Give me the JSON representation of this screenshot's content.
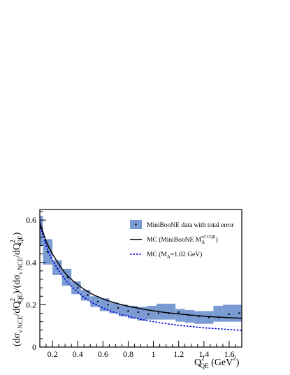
{
  "chart_data": {
    "type": "line",
    "xlabel": {
      "main": "Q",
      "sup": "2",
      "sub": "QE",
      "unit_pre": " (GeV",
      "unit_sup": "2",
      "unit_post": ")"
    },
    "ylabel": {
      "p1": "(dσ",
      "s1": "ν NCE",
      "p2": "/dQ",
      "sup2": "2",
      "s2": "QE",
      "p3": ")/(dσ",
      "s3": "ν NCE",
      "p4": "/dQ",
      "sup4": "2",
      "s4": "QE",
      "p5": ")"
    },
    "xlim": [
      0.1,
      1.7
    ],
    "ylim": [
      0,
      0.65
    ],
    "x_ticks": [
      {
        "value": 0.2,
        "label": "0.2"
      },
      {
        "value": 0.4,
        "label": "0.4"
      },
      {
        "value": 0.6,
        "label": "0.6"
      },
      {
        "value": 0.8,
        "label": "0.8"
      },
      {
        "value": 1.0,
        "label": "1"
      },
      {
        "value": 1.2,
        "label": "1.2"
      },
      {
        "value": 1.4,
        "label": "1.4"
      },
      {
        "value": 1.6,
        "label": "1.6"
      }
    ],
    "y_ticks": [
      {
        "value": 0,
        "label": "0"
      },
      {
        "value": 0.2,
        "label": "0.2"
      },
      {
        "value": 0.4,
        "label": "0.4"
      },
      {
        "value": 0.6,
        "label": "0.6"
      }
    ],
    "legend_position": "top-right",
    "colors": {
      "band": "#7b9bd3",
      "points": "#000000",
      "line_a": "#000000",
      "line_b": "#0000dd"
    },
    "series": [
      {
        "name": "MiniBooNE data with total error",
        "kind": "points_with_error_band",
        "x": [
          0.1,
          0.16,
          0.24,
          0.32,
          0.4,
          0.48,
          0.56,
          0.64,
          0.72,
          0.8,
          0.88,
          0.96,
          1.04,
          1.12,
          1.2,
          1.28,
          1.36,
          1.44,
          1.52,
          1.6,
          1.68
        ],
        "y": [
          0.56,
          0.45,
          0.37,
          0.33,
          0.28,
          0.245,
          0.215,
          0.2,
          0.185,
          0.17,
          0.165,
          0.155,
          0.16,
          0.16,
          0.165,
          0.15,
          0.145,
          0.14,
          0.14,
          0.155,
          0.16
        ],
        "lo": [
          0.48,
          0.39,
          0.34,
          0.29,
          0.25,
          0.22,
          0.19,
          0.17,
          0.16,
          0.145,
          0.135,
          0.125,
          0.13,
          0.13,
          0.13,
          0.12,
          0.115,
          0.11,
          0.11,
          0.12,
          0.12
        ],
        "hi": [
          0.62,
          0.51,
          0.41,
          0.37,
          0.31,
          0.27,
          0.24,
          0.23,
          0.21,
          0.2,
          0.195,
          0.19,
          0.195,
          0.205,
          0.205,
          0.18,
          0.175,
          0.17,
          0.17,
          0.195,
          0.2
        ],
        "bin_edges": [
          0.1,
          0.125,
          0.2,
          0.275,
          0.35,
          0.425,
          0.5,
          0.575,
          0.65,
          0.725,
          0.8,
          0.875,
          0.95,
          1.025,
          1.1,
          1.175,
          1.25,
          1.325,
          1.4,
          1.475,
          1.55,
          1.7
        ]
      },
      {
        "name": "MC (MiniBooNE M",
        "name_sub": "A",
        "name_sup": "νCCQE",
        "name_post": ")",
        "kind": "line",
        "x": [
          0.1,
          0.15,
          0.2,
          0.3,
          0.4,
          0.5,
          0.6,
          0.7,
          0.8,
          0.9,
          1.0,
          1.1,
          1.2,
          1.3,
          1.4,
          1.5,
          1.6,
          1.7
        ],
        "y": [
          0.59,
          0.5,
          0.44,
          0.35,
          0.295,
          0.255,
          0.228,
          0.208,
          0.193,
          0.181,
          0.171,
          0.163,
          0.157,
          0.151,
          0.146,
          0.142,
          0.139,
          0.136
        ]
      },
      {
        "name": "MC (M",
        "name_sub": "A",
        "name_post": "=1.02 GeV)",
        "kind": "dashed_line",
        "x": [
          0.1,
          0.15,
          0.2,
          0.3,
          0.4,
          0.5,
          0.6,
          0.7,
          0.8,
          0.9,
          1.0,
          1.1,
          1.2,
          1.3,
          1.4,
          1.5,
          1.6,
          1.7
        ],
        "y": [
          0.58,
          0.48,
          0.41,
          0.32,
          0.26,
          0.215,
          0.185,
          0.162,
          0.145,
          0.131,
          0.12,
          0.111,
          0.103,
          0.097,
          0.091,
          0.087,
          0.083,
          0.079
        ]
      }
    ]
  }
}
